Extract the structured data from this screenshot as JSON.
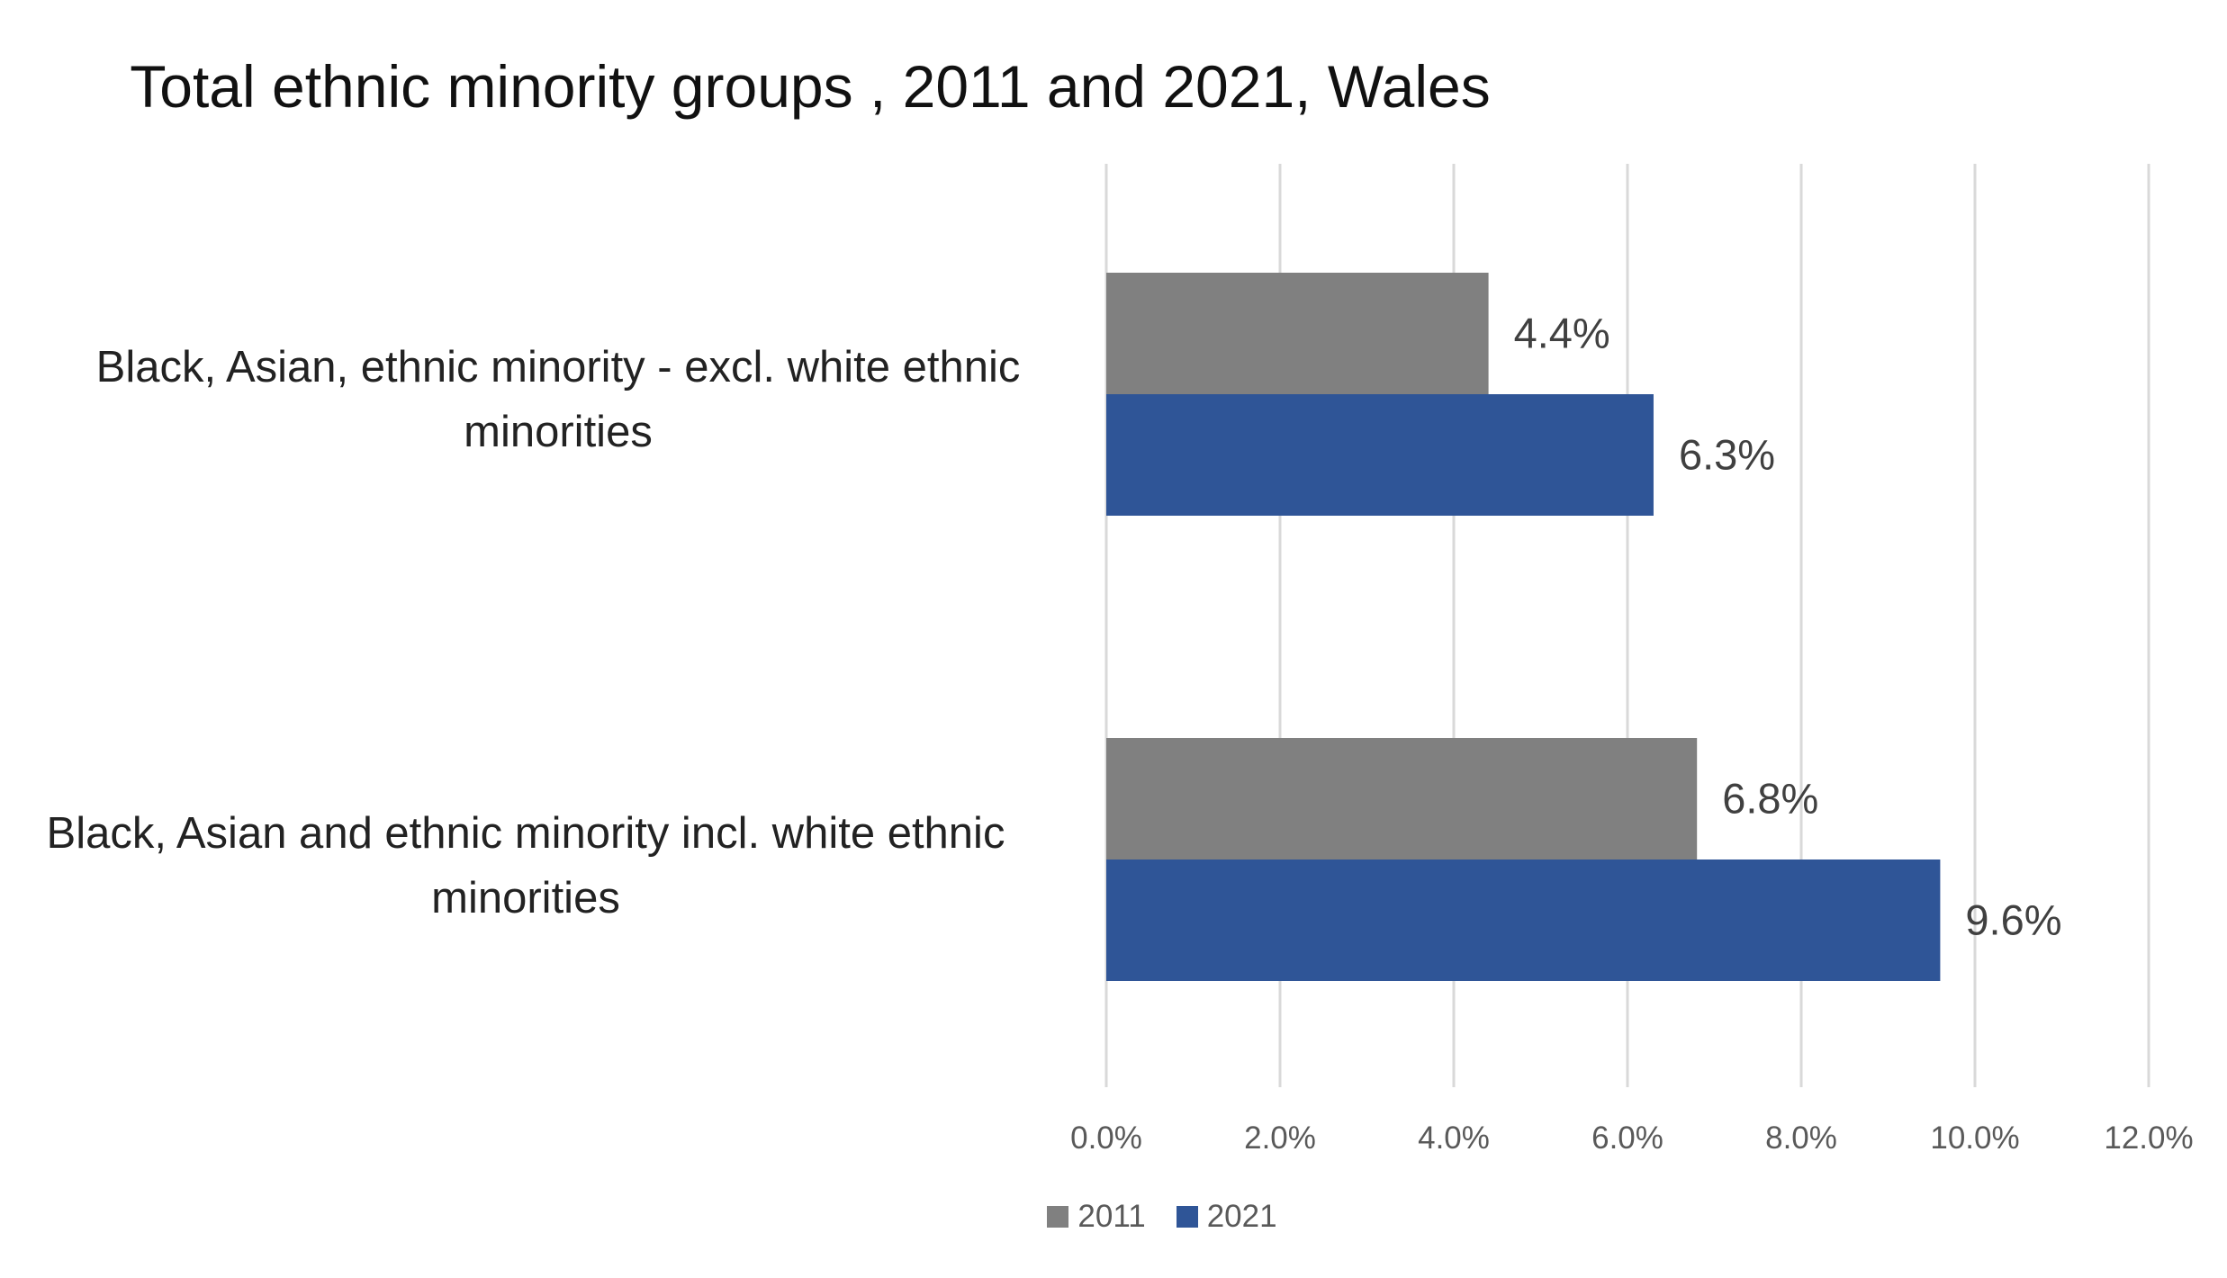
{
  "chart_data": {
    "type": "bar",
    "orientation": "horizontal",
    "title": "Total ethnic minority groups , 2011 and 2021, Wales",
    "categories": [
      "Black, Asian, ethnic minority - excl. white ethnic minorities",
      "Black, Asian and ethnic minority incl. white ethnic minorities"
    ],
    "series": [
      {
        "name": "2011",
        "color": "#808080",
        "values": [
          4.4,
          6.8
        ],
        "labels": [
          "4.4%",
          "6.8%"
        ]
      },
      {
        "name": "2021",
        "color": "#2F5597",
        "values": [
          6.3,
          9.6
        ],
        "labels": [
          "6.3%",
          "9.6%"
        ]
      }
    ],
    "xlim": [
      0,
      12
    ],
    "xticks": [
      0,
      2,
      4,
      6,
      8,
      10,
      12
    ],
    "xtick_labels": [
      "0.0%",
      "2.0%",
      "4.0%",
      "6.0%",
      "8.0%",
      "10.0%",
      "12.0%"
    ],
    "xlabel": "",
    "ylabel": "",
    "grid": "vertical",
    "legend_position": "bottom"
  }
}
